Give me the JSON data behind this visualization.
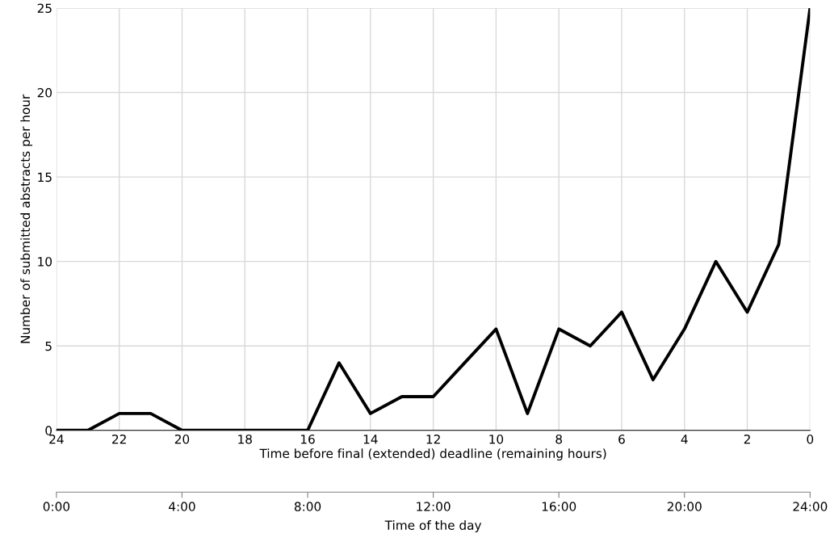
{
  "chart_data": {
    "type": "line",
    "xlabel": "Time before final (extended) deadline (remaining hours)",
    "ylabel": "Number of submitted abstracts per hour",
    "x2label": "Time of the day",
    "x": [
      24,
      23,
      22,
      21,
      20,
      19,
      18,
      17,
      16,
      15,
      14,
      13,
      12,
      11,
      10,
      9,
      8,
      7,
      6,
      5,
      4,
      3,
      2,
      1,
      0
    ],
    "series": [
      {
        "color": "#000000",
        "values": [
          0,
          0,
          1,
          1,
          0,
          0,
          0,
          0,
          0,
          4,
          1,
          2,
          2,
          4,
          6,
          1,
          6,
          5,
          7,
          3,
          6,
          10,
          7,
          11,
          25
        ]
      }
    ],
    "xlim": [
      24,
      0
    ],
    "xticks": [
      24,
      22,
      20,
      18,
      16,
      14,
      12,
      10,
      8,
      6,
      4,
      2,
      0
    ],
    "ylim": [
      0,
      25
    ],
    "yticks": [
      0,
      5,
      10,
      15,
      20,
      25
    ],
    "x2lim": [
      0,
      24
    ],
    "x2ticks": [
      {
        "value": 0,
        "label": "0:00"
      },
      {
        "value": 4,
        "label": "4:00"
      },
      {
        "value": 8,
        "label": "8:00"
      },
      {
        "value": 12,
        "label": "12:00"
      },
      {
        "value": 16,
        "label": "16:00"
      },
      {
        "value": 20,
        "label": "20:00"
      },
      {
        "value": 24,
        "label": "24:00"
      }
    ],
    "grid": true,
    "legend": false,
    "marker": "none",
    "line_style": "solid"
  }
}
